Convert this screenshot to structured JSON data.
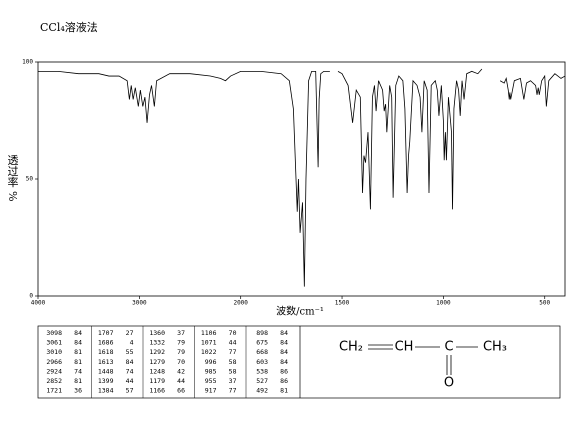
{
  "chart_data": {
    "type": "line",
    "title": "CCl₄溶液法",
    "x_label": "波数/cm⁻¹",
    "y_label": "透过率 %",
    "xlim": [
      4000,
      400
    ],
    "xticks": [
      4000,
      3000,
      2000,
      1500,
      1000,
      500
    ],
    "ylim": [
      0,
      100
    ],
    "yticks": [
      0,
      50,
      100
    ],
    "color": "#000000",
    "x": [
      4000,
      3800,
      3600,
      3400,
      3300,
      3200,
      3120,
      3098,
      3080,
      3061,
      3040,
      3010,
      2990,
      2966,
      2945,
      2924,
      2900,
      2880,
      2852,
      2830,
      2700,
      2500,
      2300,
      2200,
      2150,
      2100,
      2000,
      1900,
      1800,
      1760,
      1740,
      1721,
      1715,
      1707,
      1695,
      1686,
      1678,
      1665,
      1650,
      1630,
      1618,
      1613,
      1605,
      1590,
      1560,
      1540,
      1520,
      1500,
      1470,
      1448,
      1430,
      1410,
      1399,
      1392,
      1384,
      1372,
      1360,
      1350,
      1340,
      1332,
      1320,
      1300,
      1292,
      1285,
      1279,
      1265,
      1255,
      1248,
      1235,
      1220,
      1200,
      1190,
      1179,
      1172,
      1166,
      1150,
      1130,
      1115,
      1106,
      1095,
      1080,
      1071,
      1060,
      1040,
      1030,
      1022,
      1010,
      1000,
      996,
      990,
      985,
      975,
      960,
      955,
      948,
      935,
      925,
      917,
      908,
      898,
      885,
      860,
      830,
      810,
      760,
      720,
      700,
      690,
      680,
      675,
      672,
      668,
      650,
      620,
      603,
      590,
      570,
      545,
      538,
      532,
      527,
      515,
      500,
      492,
      480,
      450,
      420,
      400
    ],
    "values": [
      96,
      96,
      95,
      95,
      94,
      94,
      92,
      84,
      90,
      84,
      89,
      81,
      88,
      81,
      85,
      74,
      86,
      90,
      81,
      92,
      95,
      95,
      94,
      93,
      92,
      94,
      96,
      96,
      95,
      92,
      80,
      36,
      50,
      27,
      40,
      4,
      50,
      92,
      96,
      96,
      55,
      84,
      95,
      96,
      96,
      null,
      96,
      95,
      90,
      74,
      88,
      85,
      44,
      60,
      57,
      70,
      37,
      85,
      90,
      79,
      92,
      88,
      79,
      82,
      70,
      90,
      85,
      42,
      90,
      94,
      92,
      80,
      44,
      60,
      66,
      92,
      90,
      85,
      70,
      92,
      88,
      44,
      90,
      92,
      88,
      77,
      90,
      75,
      58,
      70,
      58,
      85,
      70,
      37,
      80,
      92,
      88,
      77,
      92,
      84,
      95,
      96,
      95,
      97,
      null,
      92,
      91,
      93,
      88,
      84,
      87,
      84,
      92,
      93,
      84,
      91,
      92,
      90,
      86,
      89,
      86,
      92,
      94,
      81,
      92,
      95,
      93,
      94
    ],
    "peak_table": [
      [
        [
          3098,
          84
        ],
        [
          3061,
          84
        ],
        [
          3010,
          81
        ],
        [
          2966,
          81
        ],
        [
          2924,
          74
        ],
        [
          2852,
          81
        ],
        [
          1721,
          36
        ]
      ],
      [
        [
          1707,
          27
        ],
        [
          1686,
          4
        ],
        [
          1618,
          55
        ],
        [
          1613,
          84
        ],
        [
          1448,
          74
        ],
        [
          1399,
          44
        ],
        [
          1384,
          57
        ]
      ],
      [
        [
          1360,
          37
        ],
        [
          1332,
          79
        ],
        [
          1292,
          79
        ],
        [
          1279,
          70
        ],
        [
          1248,
          42
        ],
        [
          1179,
          44
        ],
        [
          1166,
          66
        ]
      ],
      [
        [
          1106,
          70
        ],
        [
          1071,
          44
        ],
        [
          1022,
          77
        ],
        [
          996,
          58
        ],
        [
          985,
          58
        ],
        [
          955,
          37
        ],
        [
          917,
          77
        ]
      ],
      [
        [
          898,
          84
        ],
        [
          675,
          84
        ],
        [
          668,
          84
        ],
        [
          603,
          84
        ],
        [
          538,
          86
        ],
        [
          527,
          86
        ],
        [
          492,
          81
        ]
      ]
    ],
    "structure": [
      "CH₂",
      "CH",
      "C",
      "CH₃",
      "O"
    ]
  }
}
